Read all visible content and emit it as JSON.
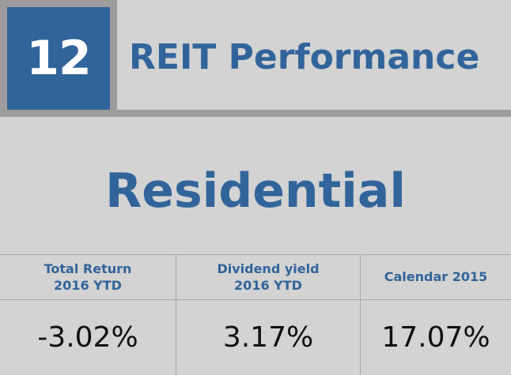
{
  "header": {
    "number": "12",
    "title": "REIT Performance"
  },
  "category": "Residential",
  "table": {
    "columns": [
      {
        "header": "Total Return\n2016 YTD",
        "value": "-3.02%"
      },
      {
        "header": "Dividend yield\n2016 YTD",
        "value": "3.17%"
      },
      {
        "header": "Calendar 2015",
        "value": "17.07%"
      }
    ]
  },
  "colors": {
    "accent": "#31649a",
    "background": "#d3d3d3",
    "frame": "#9c9c9c"
  }
}
